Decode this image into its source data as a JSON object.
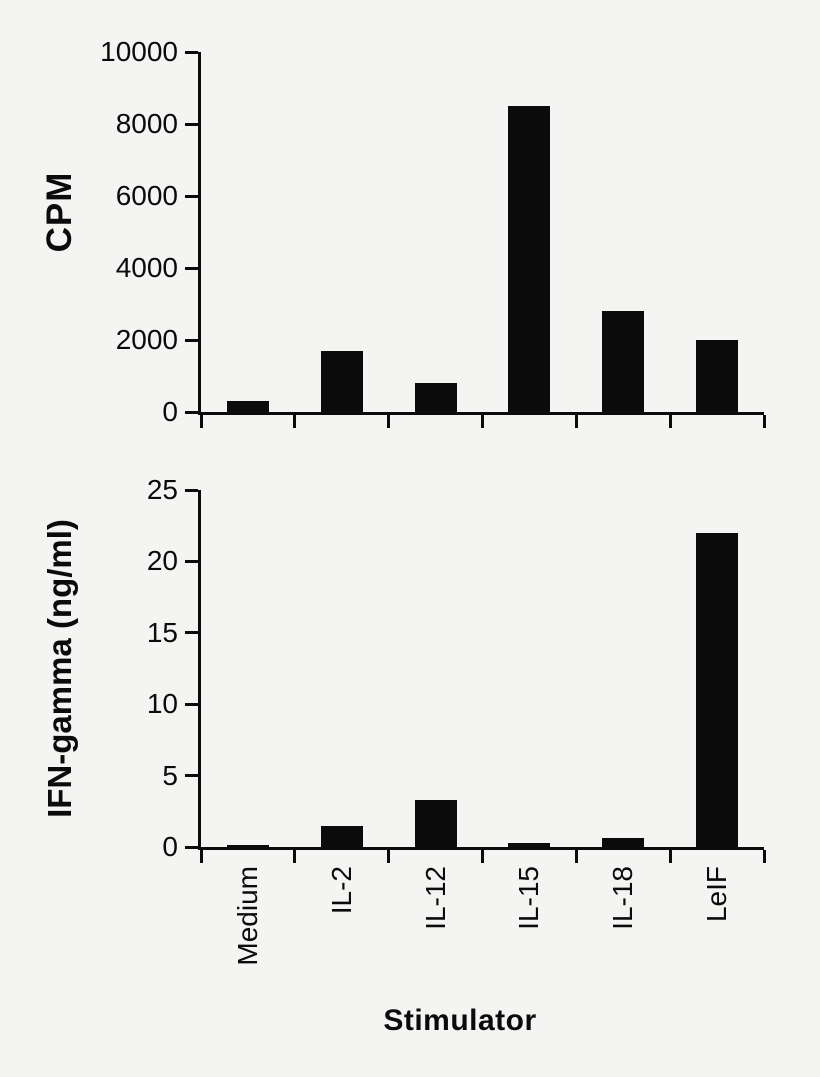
{
  "figure": {
    "background": "#f4f4f2",
    "ink": "#0b0b0b",
    "bar_color": "#0b0b0b"
  },
  "chart_data": [
    {
      "id": "proliferation-panel",
      "type": "bar",
      "title": "",
      "ylabel": "CPM",
      "xlabel": "",
      "categories": [
        "Medium",
        "IL-2",
        "IL-12",
        "IL-15",
        "IL-18",
        "LeIF"
      ],
      "values": [
        300,
        1700,
        800,
        8500,
        2800,
        2000
      ],
      "ylim": [
        0,
        10000
      ],
      "yticks": [
        0,
        2000,
        4000,
        6000,
        8000,
        10000
      ],
      "bar_color": "#0b0b0b",
      "grid": false,
      "legend": "none"
    },
    {
      "id": "ifn-gamma-panel",
      "type": "bar",
      "title": "",
      "ylabel": "IFN-gamma (ng/ml)",
      "xlabel": "Stimulator",
      "categories": [
        "Medium",
        "IL-2",
        "IL-12",
        "IL-15",
        "IL-18",
        "LeIF"
      ],
      "values": [
        0.15,
        1.5,
        3.3,
        0.3,
        0.6,
        22
      ],
      "ylim": [
        0,
        25
      ],
      "yticks": [
        0,
        5,
        10,
        15,
        20,
        25
      ],
      "bar_color": "#0b0b0b",
      "grid": false,
      "legend": "none"
    }
  ]
}
